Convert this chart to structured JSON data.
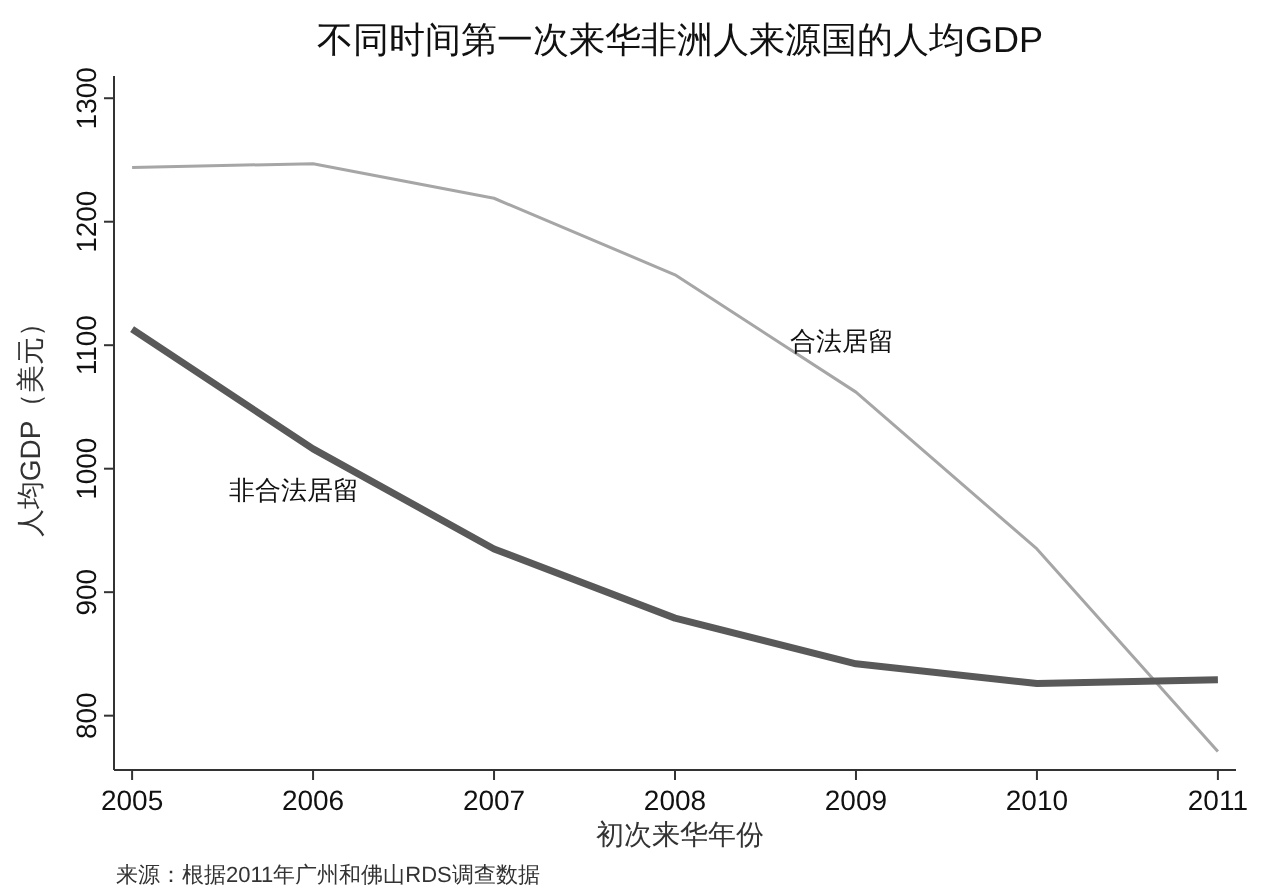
{
  "chart_data": {
    "type": "line",
    "title": "不同时间第一次来华非洲人来源国的人均GDP",
    "xlabel": "初次来华年份",
    "ylabel": "人均GDP（美元）",
    "x": [
      2005,
      2006,
      2007,
      2008,
      2009,
      2010,
      2011
    ],
    "series": [
      {
        "name": "合法居留",
        "color": "#a6a6a6",
        "values": [
          1244,
          1247,
          1219,
          1157,
          1062,
          935,
          771
        ]
      },
      {
        "name": "非合法居留",
        "color": "#595959",
        "values": [
          1113,
          1016,
          935,
          879,
          842,
          826,
          829
        ]
      }
    ],
    "xlim": [
      2004.9,
      2011.1
    ],
    "ylim": [
      756,
      1318
    ],
    "xticks": [
      2005,
      2006,
      2007,
      2008,
      2009,
      2010,
      2011
    ],
    "yticks": [
      800,
      900,
      1000,
      1100,
      1200,
      1300
    ],
    "grid": false,
    "marker": "none",
    "line_style": "solid",
    "annotations": [
      "来源：根据2011年广州和佛山RDS调查数据"
    ]
  }
}
